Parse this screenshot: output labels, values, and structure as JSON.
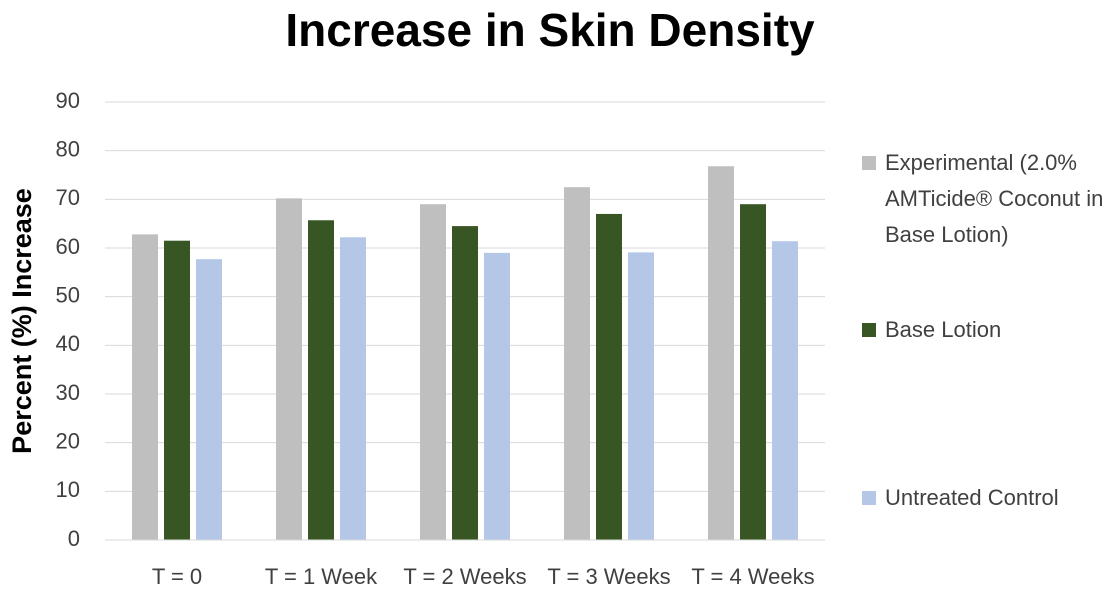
{
  "chart_data": {
    "type": "bar",
    "title": "Increase in Skin Density",
    "y_label": "Percent (%) Increase",
    "categories": [
      "T = 0",
      "T = 1 Week",
      "T = 2 Weeks",
      "T = 3 Weeks",
      "T = 4 Weeks"
    ],
    "series": [
      {
        "name": "Experimental (2.0% AMTicide® Coconut in Base Lotion)",
        "color": "#bfbfbf",
        "values": [
          62.8,
          70.2,
          69,
          72.5,
          76.8
        ]
      },
      {
        "name": "Base Lotion",
        "color": "#375623",
        "values": [
          61.5,
          65.7,
          64.5,
          67,
          69
        ]
      },
      {
        "name": "Untreated Control",
        "color": "#b4c7e7",
        "values": [
          57.7,
          62.2,
          59,
          59.1,
          61.4
        ]
      }
    ],
    "ylim": [
      0,
      90
    ],
    "yticks": [
      0,
      10,
      20,
      30,
      40,
      50,
      60,
      70,
      80,
      90
    ],
    "grid": true,
    "legend": "right"
  }
}
